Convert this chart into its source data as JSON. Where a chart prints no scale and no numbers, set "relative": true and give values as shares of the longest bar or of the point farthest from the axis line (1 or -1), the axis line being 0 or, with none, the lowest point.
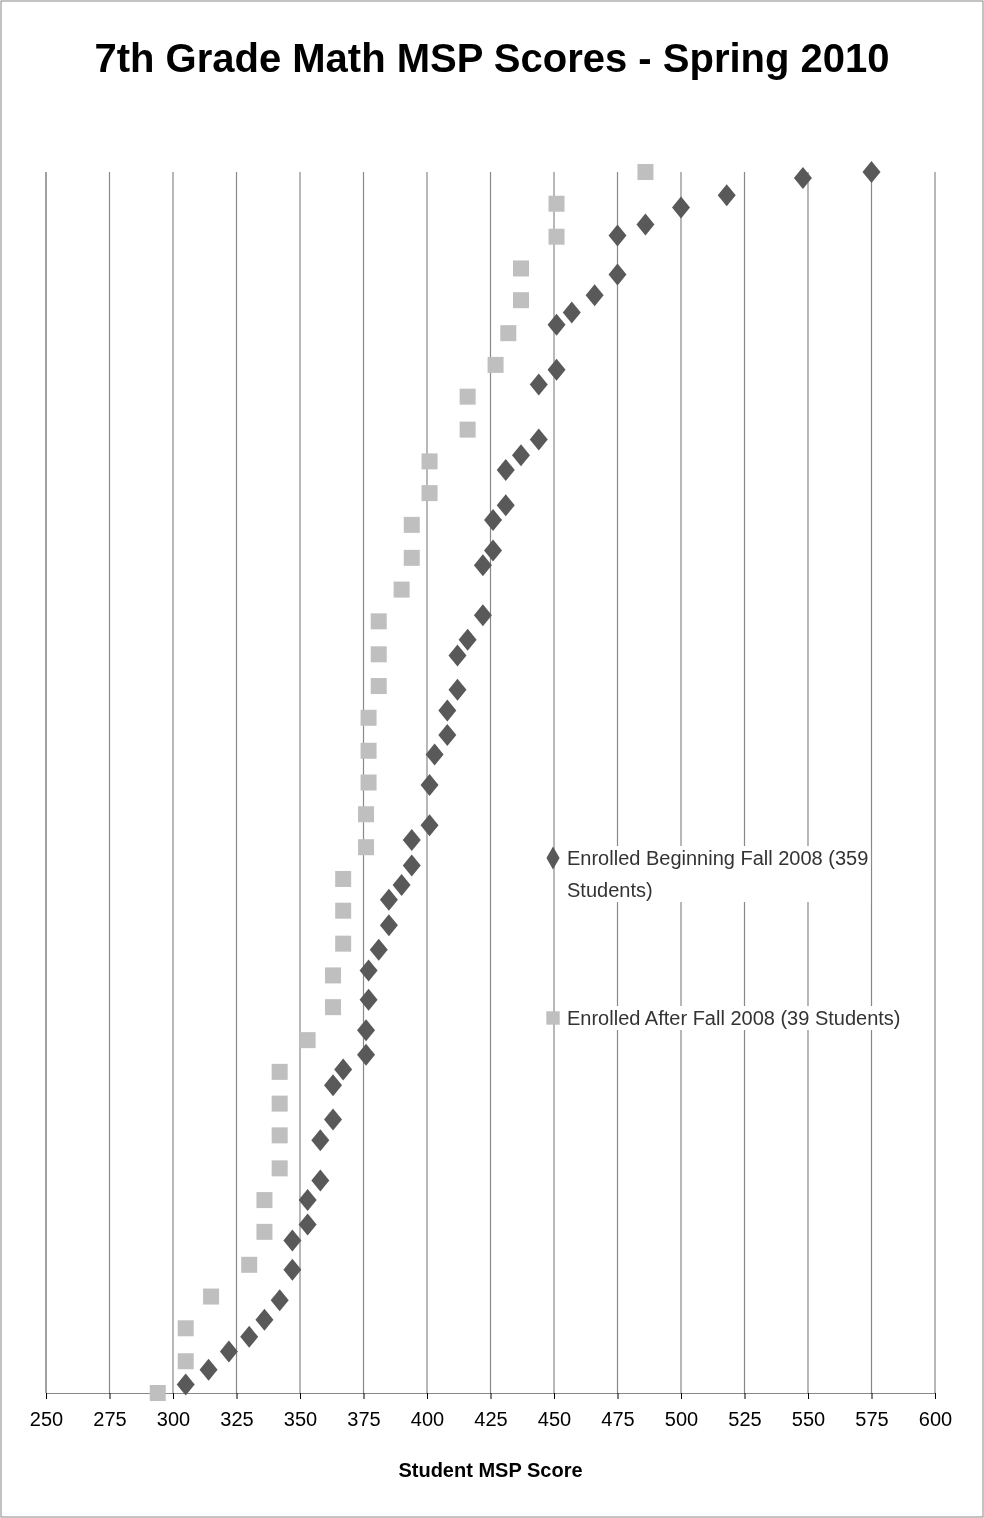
{
  "chart_data": {
    "type": "scatter",
    "title": "7th Grade Math MSP Scores - Spring 2010",
    "xlabel": "Student MSP Score",
    "relative": true,
    "xlim": [
      250,
      600
    ],
    "xticks": [
      250,
      275,
      300,
      325,
      350,
      375,
      400,
      425,
      450,
      475,
      500,
      525,
      550,
      575,
      600
    ],
    "grid": "x",
    "legend": "right",
    "series": [
      {
        "name": "Enrolled Beginning Fall 2008 (359 Students)",
        "color": "#595959",
        "marker": "diamond",
        "x": [
          305,
          314,
          322,
          330,
          336,
          342,
          347,
          347,
          353,
          353,
          358,
          358,
          363,
          363,
          367,
          376,
          376,
          377,
          377,
          381,
          385,
          385,
          390,
          394,
          394,
          401,
          401,
          403,
          408,
          408,
          412,
          412,
          416,
          422,
          422,
          426,
          426,
          431,
          431,
          437,
          444,
          444,
          451,
          451,
          457,
          466,
          475,
          475,
          486,
          500,
          518,
          548,
          575
        ],
        "values": [
          0.007,
          0.019,
          0.034,
          0.046,
          0.06,
          0.076,
          0.101,
          0.125,
          0.138,
          0.158,
          0.174,
          0.207,
          0.224,
          0.252,
          0.265,
          0.277,
          0.297,
          0.322,
          0.346,
          0.363,
          0.383,
          0.404,
          0.416,
          0.432,
          0.453,
          0.465,
          0.498,
          0.523,
          0.539,
          0.559,
          0.576,
          0.604,
          0.617,
          0.637,
          0.678,
          0.69,
          0.715,
          0.727,
          0.756,
          0.768,
          0.781,
          0.826,
          0.838,
          0.875,
          0.885,
          0.899,
          0.916,
          0.948,
          0.957,
          0.971,
          0.981,
          0.995,
          1
        ]
      },
      {
        "name": "Enrolled After Fall 2008 (39 Students)",
        "color": "#bfbfbf",
        "marker": "square",
        "x": [
          294,
          305,
          305,
          315,
          330,
          336,
          336,
          342,
          342,
          342,
          342,
          353,
          363,
          363,
          367,
          367,
          367,
          376,
          376,
          377,
          377,
          377,
          381,
          381,
          381,
          390,
          394,
          394,
          401,
          401,
          416,
          416,
          427,
          432,
          437,
          437,
          451,
          451,
          486
        ],
        "values": [
          0,
          0.026,
          0.053,
          0.079,
          0.105,
          0.132,
          0.158,
          0.184,
          0.211,
          0.237,
          0.263,
          0.289,
          0.316,
          0.342,
          0.368,
          0.395,
          0.421,
          0.447,
          0.474,
          0.5,
          0.526,
          0.553,
          0.579,
          0.605,
          0.632,
          0.658,
          0.684,
          0.711,
          0.737,
          0.763,
          0.789,
          0.816,
          0.842,
          0.868,
          0.895,
          0.921,
          0.947,
          0.974,
          1
        ]
      }
    ]
  }
}
